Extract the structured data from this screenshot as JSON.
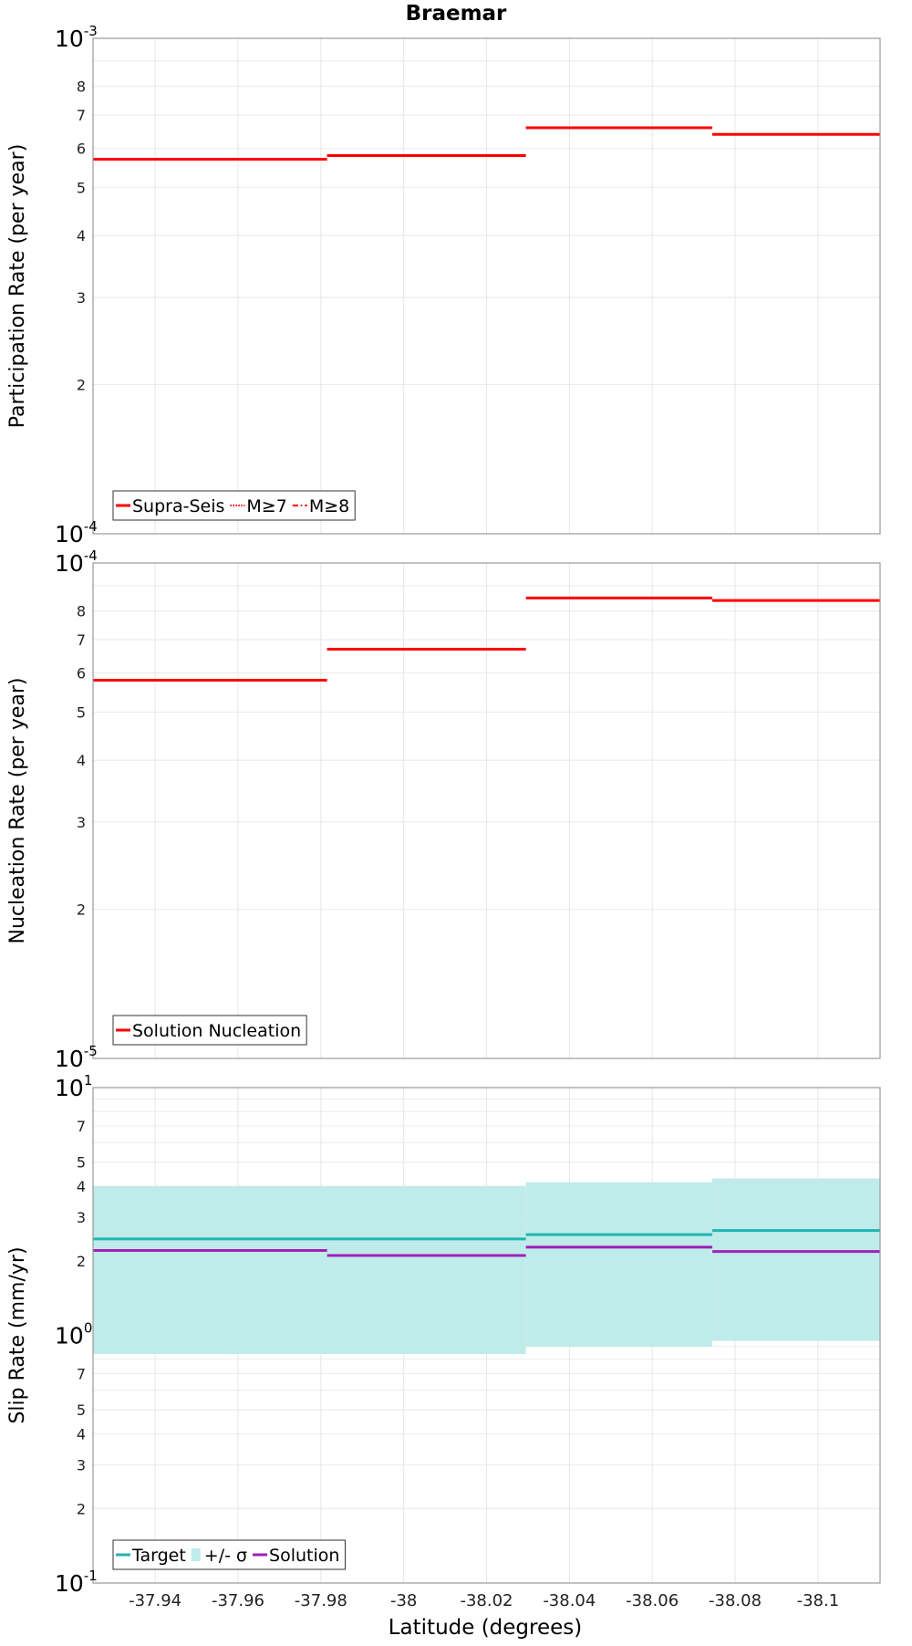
{
  "figure_title": "Braemar",
  "shared_xlabel": "Latitude (degrees)",
  "x_ticks": [
    "-37.94",
    "-37.96",
    "-37.98",
    "-38",
    "-38.02",
    "-38.04",
    "-38.06",
    "-38.08",
    "-38.1"
  ],
  "chart_data": [
    {
      "type": "line",
      "step": true,
      "ylabel": "Participation Rate (per year)",
      "yscale": "log",
      "ylim": [
        0.0001,
        0.001
      ],
      "xlim": [
        -37.925,
        -38.115
      ],
      "major_tick_labels": [
        {
          "base": "10",
          "exp": "-3",
          "value": 0.001
        },
        {
          "base": "10",
          "exp": "-4",
          "value": 0.0001
        }
      ],
      "minor_tick_labels": [
        {
          "label": "8",
          "value": 0.0008
        },
        {
          "label": "7",
          "value": 0.0007
        },
        {
          "label": "6",
          "value": 0.0006
        },
        {
          "label": "5",
          "value": 0.0005
        },
        {
          "label": "4",
          "value": 0.0004
        },
        {
          "label": "3",
          "value": 0.0003
        },
        {
          "label": "2",
          "value": 0.0002
        }
      ],
      "legend": "bottom-left",
      "series": [
        {
          "name": "Supra-Seis",
          "color": "#ff0000",
          "style": "solid",
          "segments": [
            {
              "x0": -37.925,
              "x1": -37.9815,
              "y": 0.00057
            },
            {
              "x0": -37.9815,
              "x1": -38.0295,
              "y": 0.00058
            },
            {
              "x0": -38.0295,
              "x1": -38.0745,
              "y": 0.00066
            },
            {
              "x0": -38.0745,
              "x1": -38.115,
              "y": 0.00064
            }
          ]
        },
        {
          "name": "M≥7",
          "color": "#ff0000",
          "style": "dotted",
          "segments": [
            {
              "x0": -37.925,
              "x1": -37.9815,
              "y": 0.00057
            },
            {
              "x0": -37.9815,
              "x1": -38.0295,
              "y": 0.00058
            },
            {
              "x0": -38.0295,
              "x1": -38.0745,
              "y": 0.00066
            },
            {
              "x0": -38.0745,
              "x1": -38.115,
              "y": 0.00064
            }
          ]
        },
        {
          "name": "M≥8",
          "color": "#ff0000",
          "style": "dashdot",
          "segments": []
        }
      ]
    },
    {
      "type": "line",
      "step": true,
      "ylabel": "Nucleation Rate (per year)",
      "yscale": "log",
      "ylim": [
        1e-05,
        0.0001
      ],
      "xlim": [
        -37.925,
        -38.115
      ],
      "major_tick_labels": [
        {
          "base": "10",
          "exp": "-4",
          "value": 0.0001
        },
        {
          "base": "10",
          "exp": "-5",
          "value": 1e-05
        }
      ],
      "minor_tick_labels": [
        {
          "label": "8",
          "value": 8e-05
        },
        {
          "label": "7",
          "value": 7e-05
        },
        {
          "label": "6",
          "value": 6e-05
        },
        {
          "label": "5",
          "value": 5e-05
        },
        {
          "label": "4",
          "value": 4e-05
        },
        {
          "label": "3",
          "value": 3e-05
        },
        {
          "label": "2",
          "value": 2e-05
        }
      ],
      "legend": "bottom-left",
      "series": [
        {
          "name": "Solution Nucleation",
          "color": "#ff0000",
          "style": "solid",
          "segments": [
            {
              "x0": -37.925,
              "x1": -37.9815,
              "y": 5.8e-05
            },
            {
              "x0": -37.9815,
              "x1": -38.0295,
              "y": 6.7e-05
            },
            {
              "x0": -38.0295,
              "x1": -38.0745,
              "y": 8.5e-05
            },
            {
              "x0": -38.0745,
              "x1": -38.115,
              "y": 8.4e-05
            }
          ]
        }
      ]
    },
    {
      "type": "line",
      "step": true,
      "ylabel": "Slip Rate (mm/yr)",
      "yscale": "log",
      "ylim": [
        0.1,
        10
      ],
      "xlim": [
        -37.925,
        -38.115
      ],
      "major_tick_labels": [
        {
          "base": "10",
          "exp": "1",
          "value": 10
        },
        {
          "base": "10",
          "exp": "0",
          "value": 1
        },
        {
          "base": "10",
          "exp": "-1",
          "value": 0.1
        }
      ],
      "minor_tick_labels": [
        {
          "label": "7",
          "value": 7
        },
        {
          "label": "5",
          "value": 5
        },
        {
          "label": "4",
          "value": 4
        },
        {
          "label": "3",
          "value": 3
        },
        {
          "label": "2",
          "value": 2
        },
        {
          "label": "7",
          "value": 0.7
        },
        {
          "label": "5",
          "value": 0.5
        },
        {
          "label": "4",
          "value": 0.4
        },
        {
          "label": "3",
          "value": 0.3
        },
        {
          "label": "2",
          "value": 0.2
        }
      ],
      "legend": "bottom-left",
      "band": {
        "name": "+/- σ",
        "color": "#bfecea",
        "segments": [
          {
            "x0": -37.925,
            "x1": -38.0295,
            "low": 0.84,
            "high": 4.0
          },
          {
            "x0": -38.0295,
            "x1": -38.0745,
            "low": 0.9,
            "high": 4.15
          },
          {
            "x0": -38.0745,
            "x1": -38.115,
            "low": 0.95,
            "high": 4.3
          }
        ]
      },
      "series": [
        {
          "name": "Target",
          "color": "#1fb5b0",
          "style": "solid",
          "segments": [
            {
              "x0": -37.925,
              "x1": -38.0295,
              "y": 2.45
            },
            {
              "x0": -38.0295,
              "x1": -38.0745,
              "y": 2.55
            },
            {
              "x0": -38.0745,
              "x1": -38.115,
              "y": 2.65
            }
          ]
        },
        {
          "name": "Solution",
          "color": "#a020b8",
          "style": "solid",
          "segments": [
            {
              "x0": -37.925,
              "x1": -37.9815,
              "y": 2.2
            },
            {
              "x0": -37.9815,
              "x1": -38.0295,
              "y": 2.1
            },
            {
              "x0": -38.0295,
              "x1": -38.0745,
              "y": 2.27
            },
            {
              "x0": -38.0745,
              "x1": -38.115,
              "y": 2.18
            }
          ]
        }
      ]
    }
  ]
}
